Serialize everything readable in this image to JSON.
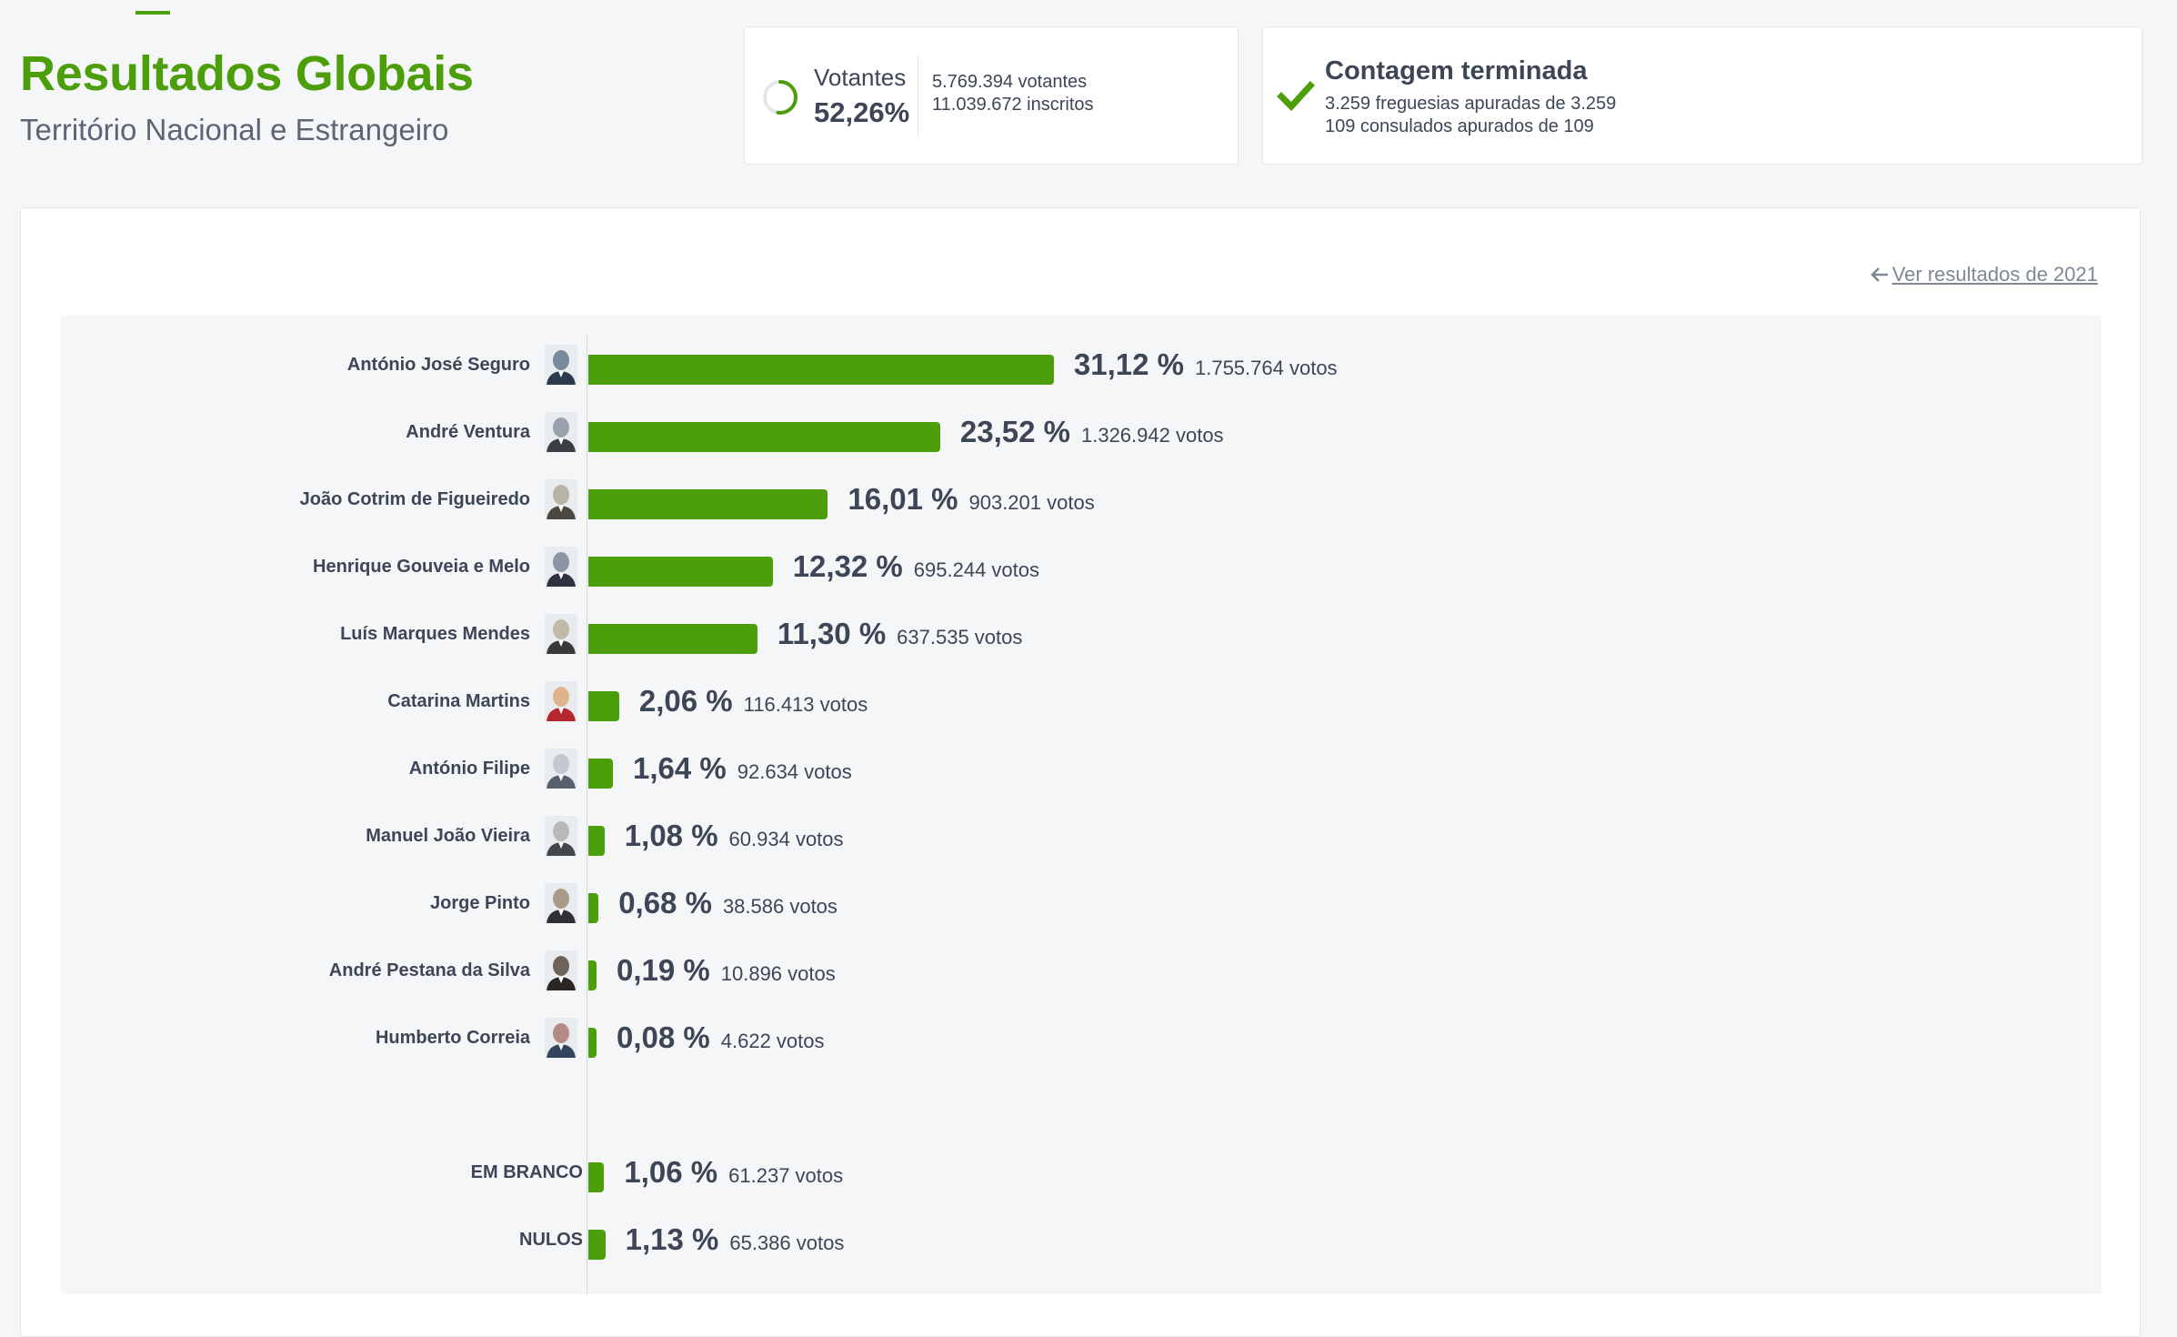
{
  "header": {
    "title": "Resultados Globais",
    "subtitle": "Território Nacional e Estrangeiro"
  },
  "voters": {
    "label": "Votantes",
    "percent": "52,26%",
    "percent_value": 52.26,
    "count": "5.769.394 votantes",
    "registered": "11.039.672 inscritos"
  },
  "count_status": {
    "title": "Contagem terminada",
    "line1": "3.259 freguesias apuradas de 3.259",
    "line2": "109 consulados apurados de 109"
  },
  "back_link": {
    "label": "Ver resultados de 2021"
  },
  "colors": {
    "accent": "#4c9e0a",
    "text": "#3c4656"
  },
  "chart_data": {
    "type": "bar",
    "orientation": "horizontal",
    "categories": [
      "António José Seguro",
      "André Ventura",
      "João Cotrim de Figueiredo",
      "Henrique Gouveia e Melo",
      "Luís Marques Mendes",
      "Catarina Martins",
      "António Filipe",
      "Manuel João Vieira",
      "Jorge Pinto",
      "André Pestana da Silva",
      "Humberto Correia",
      "EM BRANCO",
      "NULOS"
    ],
    "values": [
      31.12,
      23.52,
      16.01,
      12.32,
      11.3,
      2.06,
      1.64,
      1.08,
      0.68,
      0.19,
      0.08,
      1.06,
      1.13
    ],
    "percent_labels": [
      "31,12 %",
      "23,52 %",
      "16,01 %",
      "12,32 %",
      "11,30 %",
      "2,06 %",
      "1,64 %",
      "1,08 %",
      "0,68 %",
      "0,19 %",
      "0,08 %",
      "1,06 %",
      "1,13 %"
    ],
    "votes_labels": [
      "1.755.764 votos",
      "1.326.942 votos",
      "903.201 votos",
      "695.244 votos",
      "637.535 votos",
      "116.413 votos",
      "92.634 votos",
      "60.934 votos",
      "38.586 votos",
      "10.896 votos",
      "4.622 votos",
      "61.237 votos",
      "65.386 votos"
    ],
    "votes": [
      1755764,
      1326942,
      903201,
      695244,
      637535,
      116413,
      92634,
      60934,
      38586,
      10896,
      4622,
      61237,
      65386
    ],
    "color": "#4c9e0a"
  }
}
